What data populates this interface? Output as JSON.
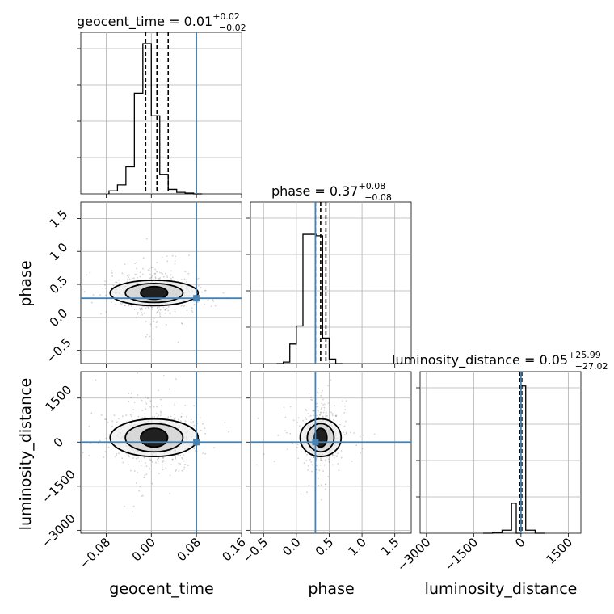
{
  "colors": {
    "truth": "#4682b4",
    "hist": "#000000",
    "grid": "#b0b0b0"
  },
  "chart_data": [
    {
      "type": "histogram",
      "parameter": "geocent_time",
      "title": {
        "prefix": "geocent_time = 0.01",
        "sup": "+0.02",
        "sub": "−0.02"
      },
      "xlim": [
        -0.125,
        0.16
      ],
      "xticks": [
        -0.08,
        0.0,
        0.08,
        0.16
      ],
      "bin_edges": [
        -0.075,
        -0.06,
        -0.045,
        -0.03,
        -0.015,
        0.0,
        0.015,
        0.03,
        0.045,
        0.06,
        0.075,
        0.09
      ],
      "density": [
        0.02,
        0.06,
        0.18,
        0.67,
        1.0,
        0.52,
        0.13,
        0.03,
        0.01,
        0.005,
        0.0
      ],
      "quantile_lines": [
        -0.01,
        0.01,
        0.03
      ],
      "truth": 0.08
    },
    {
      "type": "histogram",
      "parameter": "phase",
      "title": {
        "prefix": "phase = 0.37",
        "sup": "+0.08",
        "sub": "−0.08"
      },
      "xlim": [
        -0.7,
        1.75
      ],
      "xticks": [
        -0.5,
        0.0,
        0.5,
        1.0,
        1.5
      ],
      "bin_edges": [
        -0.3,
        -0.2,
        -0.1,
        0.0,
        0.1,
        0.2,
        0.3,
        0.4,
        0.5,
        0.6,
        0.7
      ],
      "density": [
        0.0,
        0.01,
        0.13,
        0.25,
        0.86,
        0.86,
        0.85,
        0.17,
        0.03,
        0.0
      ],
      "density_note": "",
      "quantile_lines": [
        0.29,
        0.37,
        0.45
      ],
      "truth": 0.29
    },
    {
      "type": "histogram",
      "parameter": "luminosity_distance",
      "title": {
        "prefix": "luminosity_distance = 0.05",
        "sup": "+25.99",
        "sub": "−27.02"
      },
      "xlim": [
        -3200,
        1900
      ],
      "xticks": [
        -3000,
        -1500,
        0,
        1500
      ],
      "bin_edges": [
        -1200,
        -900,
        -600,
        -300,
        -150,
        0,
        150,
        450,
        750
      ],
      "density": [
        0.0,
        0.005,
        0.02,
        0.2,
        0.0,
        0.98,
        0.02,
        0.0
      ],
      "quantile_lines": [
        -27,
        0,
        26
      ],
      "truth": 0
    },
    {
      "type": "scatter_contour",
      "x": "geocent_time",
      "y": "phase",
      "xlim": [
        -0.125,
        0.16
      ],
      "ylim": [
        -0.7,
        1.75
      ],
      "yticks": [
        -0.5,
        0.0,
        0.5,
        1.0,
        1.5
      ],
      "center": [
        0.005,
        0.37
      ],
      "spread": [
        0.03,
        0.12
      ],
      "truth": [
        0.08,
        0.29
      ]
    },
    {
      "type": "scatter_contour",
      "x": "geocent_time",
      "y": "luminosity_distance",
      "xlim": [
        -0.125,
        0.16
      ],
      "ylim": [
        -3100,
        2400
      ],
      "yticks": [
        -3000,
        -1500,
        0,
        1500
      ],
      "center": [
        0.005,
        150
      ],
      "spread": [
        0.03,
        400
      ],
      "truth": [
        0.08,
        0
      ]
    },
    {
      "type": "scatter_contour",
      "x": "phase",
      "y": "luminosity_distance",
      "xlim": [
        -0.7,
        1.75
      ],
      "ylim": [
        -3100,
        2400
      ],
      "center": [
        0.37,
        150
      ],
      "spread": [
        0.12,
        400
      ],
      "truth": [
        0.29,
        0
      ]
    }
  ],
  "labels": {
    "x": [
      "geocent_time",
      "phase",
      "luminosity_distance"
    ],
    "y": [
      "phase",
      "luminosity_distance"
    ]
  },
  "tick_text": {
    "geocent_x": [
      "−0.08",
      "0.00",
      "0.08",
      "0.16"
    ],
    "phase_x": [
      "−0.5",
      "0.0",
      "0.5",
      "1.0",
      "1.5"
    ],
    "dist_x": [
      "−3000",
      "−1500",
      "0",
      "1500"
    ],
    "phase_y": [
      "−0.5",
      "0.0",
      "0.5",
      "1.0",
      "1.5"
    ],
    "dist_y": [
      "−3000",
      "−1500",
      "0",
      "1500"
    ]
  }
}
